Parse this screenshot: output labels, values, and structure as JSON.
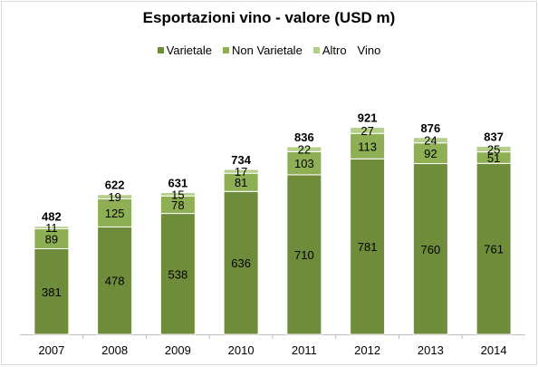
{
  "chart_data": {
    "type": "bar",
    "stacked": true,
    "title": "Esportazioni vino - valore (USD m)",
    "categories": [
      "2007",
      "2008",
      "2009",
      "2010",
      "2011",
      "2012",
      "2013",
      "2014"
    ],
    "series": [
      {
        "name": "Varietale",
        "color": "#6f8c3b",
        "values": [
          381,
          478,
          538,
          636,
          710,
          781,
          760,
          761
        ]
      },
      {
        "name": "Non Varietale",
        "color": "#8faf55",
        "values": [
          89,
          125,
          78,
          81,
          103,
          113,
          92,
          51
        ]
      },
      {
        "name": "Altro",
        "color": "#b5cf8a",
        "values": [
          11,
          19,
          15,
          17,
          22,
          27,
          24,
          25
        ]
      }
    ],
    "totals_series_name": "Vino",
    "totals": [
      482,
      622,
      631,
      734,
      836,
      921,
      876,
      837
    ],
    "ylim": [
      0,
      1000
    ],
    "grid": false,
    "legend_position": "top"
  }
}
